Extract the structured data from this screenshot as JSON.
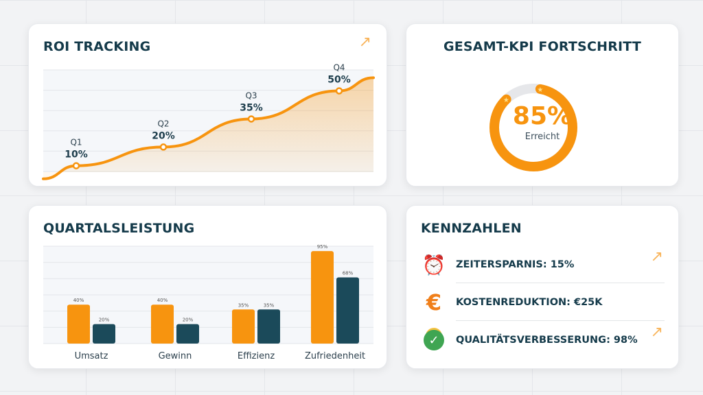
{
  "colors": {
    "accent": "#f7940f",
    "dark": "#1b4a5a",
    "title": "#143a4a",
    "track": "#e6e7ea"
  },
  "roi": {
    "title": "ROI TRACKING",
    "trend_icon": "trend-up-arrow-icon",
    "chart_data": {
      "type": "line",
      "categories": [
        "Q1",
        "Q2",
        "Q3",
        "Q4"
      ],
      "values": [
        10,
        20,
        35,
        50
      ],
      "labels": [
        "10%",
        "20%",
        "35%",
        "50%"
      ],
      "grid": true
    }
  },
  "kpi": {
    "title": "GESAMT-KPI FORTSCHRITT",
    "value": 85,
    "value_label": "85%",
    "sub": "Erreicht"
  },
  "quarter": {
    "title": "QUARTALSLEISTUNG",
    "chart_data": {
      "type": "bar",
      "categories": [
        "Umsatz",
        "Gewinn",
        "Effizienz",
        "Zufriedenheit"
      ],
      "series": [
        {
          "values": [
            40,
            40,
            35,
            95
          ],
          "labels": [
            "40%",
            "40%",
            "35%",
            "95%"
          ],
          "color": "#f7940f"
        },
        {
          "values": [
            20,
            20,
            35,
            68
          ],
          "labels": [
            "20%",
            "20%",
            "35%",
            "68%"
          ],
          "color": "#1b4a5a"
        }
      ],
      "ylim": [
        0,
        100
      ],
      "grid": true
    }
  },
  "metrics": {
    "title": "KENNZAHLEN",
    "items": [
      {
        "icon": "alarm-clock-icon",
        "label": "ZEITERSPARNIS: 15%"
      },
      {
        "icon": "euro-icon",
        "label": "KOSTENREDUKTION: €25K"
      },
      {
        "icon": "check-badge-icon",
        "label": "QUALITÄTSVERBESSERUNG: 98%"
      }
    ]
  }
}
